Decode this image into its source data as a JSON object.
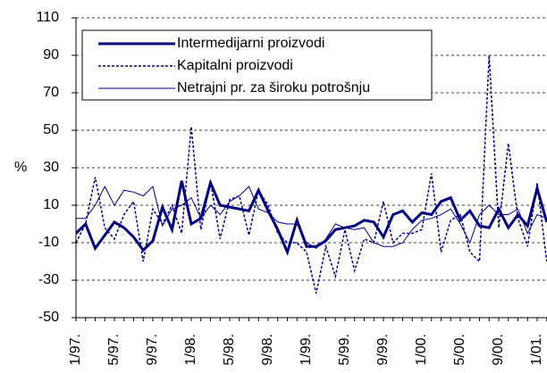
{
  "chart_data": {
    "type": "line",
    "y_label": "%",
    "categories": [
      "1/97.",
      null,
      null,
      null,
      "5/97.",
      null,
      null,
      null,
      "9/97.",
      null,
      null,
      null,
      "1/98.",
      null,
      null,
      null,
      "5/98.",
      null,
      null,
      null,
      "9/98.",
      null,
      null,
      null,
      "1/99.",
      null,
      null,
      null,
      "5/99.",
      null,
      null,
      null,
      "9/99.",
      null,
      null,
      null,
      "1/00.",
      null,
      null,
      null,
      "5/00.",
      null,
      null,
      null,
      "9/00.",
      null,
      null,
      null,
      "1/01.",
      null
    ],
    "series": [
      {
        "name": "Intermedijarni proizvodi",
        "color": "#000080",
        "style": "thick",
        "values": [
          -5,
          0,
          -13,
          -6,
          1,
          -2,
          -7,
          -14,
          -9,
          9,
          -3,
          23,
          0,
          3,
          22,
          10,
          9,
          8,
          7,
          18,
          7,
          -3,
          -15,
          2,
          -12,
          -12,
          -9,
          -3,
          -2,
          -1,
          2,
          1,
          -7,
          5,
          7,
          1,
          6,
          5,
          12,
          14,
          2,
          7,
          -1,
          -2,
          8,
          -2,
          5,
          -1,
          19,
          1
        ]
      },
      {
        "name": "Kapitalni proizvodi",
        "color": "#000080",
        "style": "dashed",
        "values": [
          -10,
          0,
          25,
          -2,
          -8,
          5,
          12,
          -20,
          8,
          0,
          10,
          -5,
          52,
          -3,
          23,
          -8,
          13,
          15,
          -6,
          18,
          10,
          -5,
          -10,
          -10,
          -15,
          -37,
          -12,
          -28,
          -3,
          -25,
          -8,
          -10,
          12,
          -10,
          -5,
          -5,
          -3,
          27,
          -15,
          2,
          5,
          -15,
          -20,
          90,
          -2,
          43,
          3,
          -12,
          22,
          -20
        ]
      },
      {
        "name": "Netrajni pr. za široku potrošnju",
        "color": "#000080",
        "style": "thin",
        "values": [
          3,
          3,
          10,
          20,
          10,
          18,
          17,
          15,
          20,
          -1,
          8,
          10,
          14,
          3,
          10,
          5,
          12,
          15,
          20,
          8,
          6,
          1,
          0,
          0,
          -10,
          -13,
          -8,
          0,
          -2,
          -3,
          -2,
          -10,
          -12,
          -12,
          -10,
          -3,
          2,
          3,
          5,
          8,
          0,
          -10,
          5,
          10,
          5,
          5,
          8,
          -5,
          5,
          3
        ]
      }
    ],
    "ylim": [
      -50,
      110
    ],
    "yticks": [
      -50,
      -30,
      -10,
      10,
      30,
      50,
      70,
      90,
      110
    ],
    "grid": true
  }
}
